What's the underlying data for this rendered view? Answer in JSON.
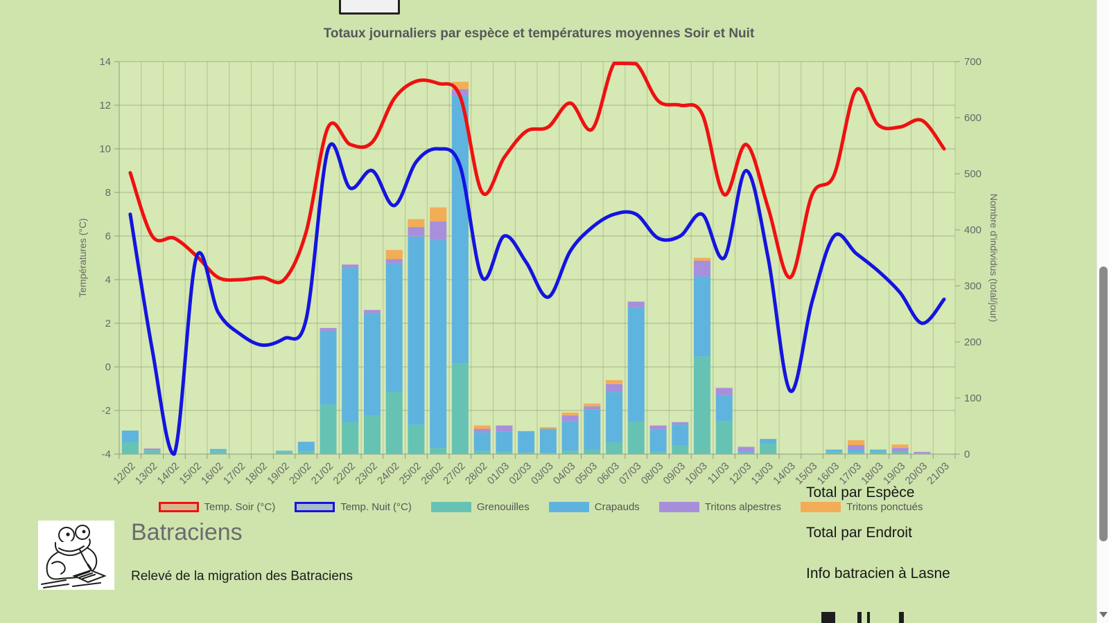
{
  "chart_data": {
    "type": "bar+line combo (stacked bars, dual axis)",
    "title": "Totaux journaliers par espèce et températures moyennes Soir et Nuit",
    "categories": [
      "12/02",
      "13/02",
      "14/02",
      "15/02",
      "16/02",
      "17/02",
      "18/02",
      "19/02",
      "20/02",
      "21/02",
      "22/02",
      "23/02",
      "24/02",
      "25/02",
      "26/02",
      "27/02",
      "28/02",
      "01/03",
      "02/03",
      "03/03",
      "04/03",
      "05/03",
      "06/03",
      "07/03",
      "08/03",
      "09/03",
      "10/03",
      "11/03",
      "12/03",
      "13/03",
      "14/03",
      "15/03",
      "16/03",
      "17/03",
      "18/03",
      "19/03",
      "20/03",
      "21/03"
    ],
    "y_left": {
      "label": "Températures (°C)",
      "min": -4,
      "max": 14,
      "step": 2
    },
    "y_right": {
      "label": "Nombre d'individus (total/jour)",
      "min": 0,
      "max": 700,
      "step": 100
    },
    "grid": true,
    "legend_position": "bottom",
    "series": [
      {
        "name": "Temp. Soir (°C)",
        "type": "line",
        "axis": "left",
        "color": "#ee1111",
        "values": [
          8.9,
          6.0,
          5.9,
          5.1,
          4.1,
          4.0,
          4.1,
          4.0,
          6.2,
          11.0,
          10.2,
          10.3,
          12.3,
          13.1,
          13.0,
          12.4,
          8.0,
          9.6,
          10.8,
          11.0,
          12.1,
          10.9,
          14.0,
          13.9,
          12.2,
          12.0,
          11.6,
          7.9,
          10.2,
          7.3,
          4.1,
          7.9,
          8.8,
          12.7,
          11.1,
          11.0,
          11.3,
          10.0
        ]
      },
      {
        "name": "Temp. Nuit (°C)",
        "type": "line",
        "axis": "left",
        "color": "#1414e0",
        "values": [
          7.0,
          0.8,
          -4.0,
          5.0,
          2.5,
          1.5,
          1.0,
          1.3,
          2.2,
          10.0,
          8.2,
          9.0,
          7.4,
          9.4,
          10.0,
          9.2,
          4.1,
          6.0,
          4.8,
          3.2,
          5.3,
          6.4,
          7.0,
          7.0,
          5.9,
          6.0,
          7.0,
          5.0,
          9.0,
          5.0,
          -1.1,
          3.0,
          6.0,
          5.2,
          4.4,
          3.4,
          2.0,
          3.1
        ]
      },
      {
        "name": "Grenouilles",
        "type": "bar",
        "axis": "right",
        "color": "#66c3b4",
        "values": [
          21,
          7,
          0,
          0,
          6,
          0,
          0,
          4,
          6,
          88,
          57,
          69,
          111,
          52,
          11,
          162,
          6,
          5,
          3,
          2,
          6,
          8,
          21,
          58,
          4,
          15,
          174,
          59,
          2,
          18,
          0,
          0,
          4,
          3,
          5,
          4,
          1,
          0
        ]
      },
      {
        "name": "Crapauds",
        "type": "bar",
        "axis": "right",
        "color": "#5fb3df",
        "values": [
          21,
          0,
          0,
          0,
          3,
          0,
          0,
          2,
          16,
          132,
          275,
          182,
          229,
          336,
          371,
          477,
          33,
          35,
          38,
          43,
          53,
          72,
          90,
          204,
          40,
          38,
          143,
          46,
          2,
          9,
          0,
          0,
          4,
          5,
          3,
          0,
          0,
          0
        ]
      },
      {
        "name": "Tritons alpestres",
        "type": "bar",
        "axis": "right",
        "color": "#a78fdc",
        "values": [
          0,
          3,
          0,
          0,
          0,
          0,
          0,
          0,
          0,
          5,
          6,
          6,
          8,
          17,
          33,
          12,
          6,
          11,
          0,
          0,
          10,
          5,
          14,
          10,
          7,
          4,
          28,
          13,
          9,
          0,
          0,
          0,
          0,
          8,
          0,
          7,
          3,
          0
        ]
      },
      {
        "name": "Tritons ponctués",
        "type": "bar",
        "axis": "right",
        "color": "#f2ad56",
        "values": [
          0,
          0,
          0,
          0,
          0,
          0,
          0,
          0,
          0,
          0,
          0,
          0,
          16,
          14,
          25,
          13,
          6,
          0,
          0,
          3,
          5,
          5,
          7,
          0,
          0,
          0,
          5,
          0,
          0,
          0,
          0,
          0,
          0,
          9,
          0,
          6,
          0,
          0
        ]
      }
    ]
  },
  "legend": {
    "soir_swatch_fill": "#d9b68e",
    "nuit_swatch_fill": "#a9bacb"
  },
  "links": {
    "items": [
      {
        "label": "Total par Espèce"
      },
      {
        "label": "Total par Endroit"
      },
      {
        "label": "Info batracien à Lasne"
      }
    ]
  },
  "footer": {
    "app_title": "Batraciens",
    "subtitle": "Relevé de la migration des Batraciens"
  },
  "colors": {
    "page_background": "#cfe4ad",
    "plot_background": "#d6e8b3",
    "axis_text": "#666666",
    "title_text": "#56575a",
    "link_text": "#161616"
  }
}
